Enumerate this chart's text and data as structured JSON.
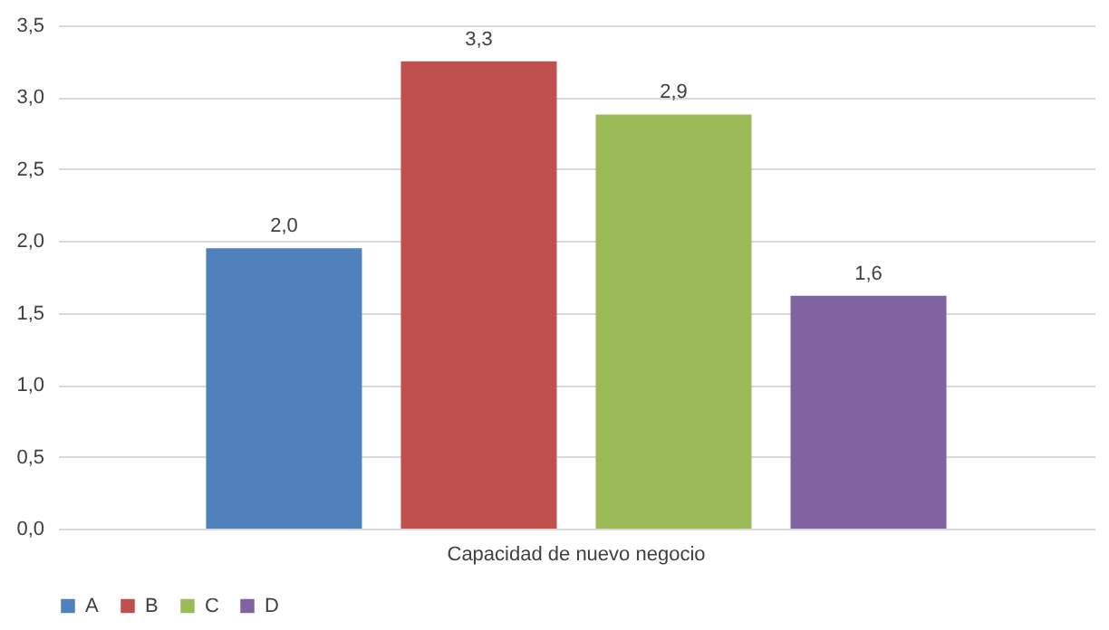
{
  "chart_data": {
    "type": "bar",
    "categories": [
      "Capacidad de nuevo negocio"
    ],
    "series": [
      {
        "name": "A",
        "color": "#4f81bd",
        "values": [
          1.95
        ],
        "value_labels": [
          "2,0"
        ]
      },
      {
        "name": "B",
        "color": "#c0504d",
        "values": [
          3.25
        ],
        "value_labels": [
          "3,3"
        ]
      },
      {
        "name": "C",
        "color": "#9bbb59",
        "values": [
          2.88
        ],
        "value_labels": [
          "2,9"
        ]
      },
      {
        "name": "D",
        "color": "#8064a2",
        "values": [
          1.62
        ],
        "value_labels": [
          "1,6"
        ]
      }
    ],
    "ylim": [
      0,
      3.5
    ],
    "yticks": [
      {
        "value": 0,
        "label": "0,0"
      },
      {
        "value": 0.5,
        "label": "0,5"
      },
      {
        "value": 1,
        "label": "1,0"
      },
      {
        "value": 1.5,
        "label": "1,5"
      },
      {
        "value": 2,
        "label": "2,0"
      },
      {
        "value": 2.5,
        "label": "2,5"
      },
      {
        "value": 3,
        "label": "3,0"
      },
      {
        "value": 3.5,
        "label": "3,5"
      }
    ],
    "grid": "y",
    "legend": "bottom"
  }
}
